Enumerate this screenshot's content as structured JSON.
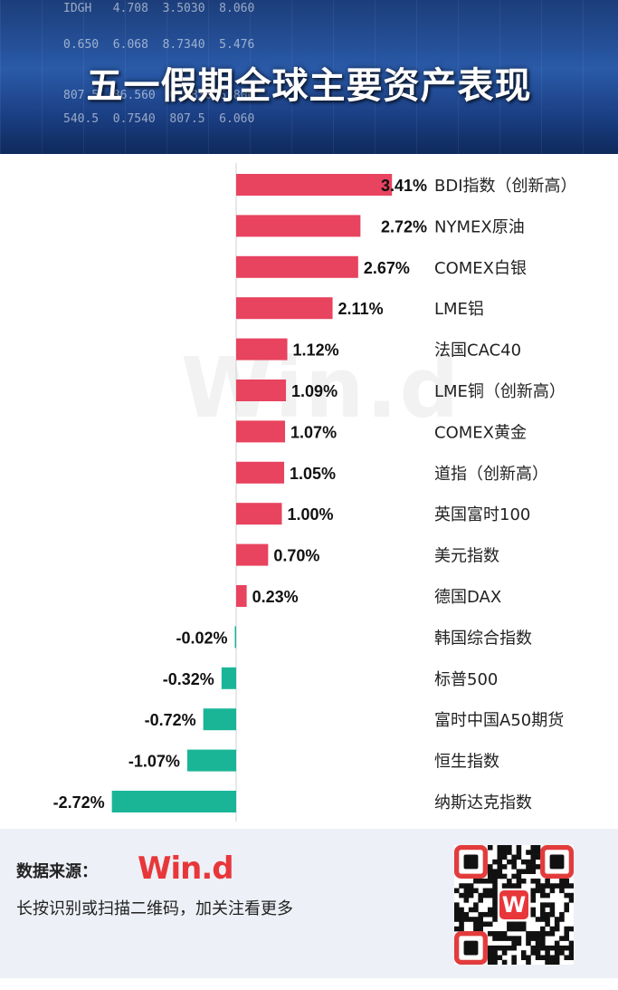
{
  "banner": {
    "title": "五一假期全球主要资产表现",
    "ticker_lines": [
      "IDGH   4.708  3.5030  8.060   ",
      "0.650  6.068  8.7340  5.476   ",
      "807.5  86.560  0.6830 6.806   ",
      "540.5  0.7540  807.5  6.060   "
    ]
  },
  "chart_data": {
    "type": "bar",
    "orientation": "horizontal",
    "categories": [
      "BDI指数（创新高）",
      "NYMEX原油",
      "COMEX白银",
      "LME铝",
      "法国CAC40",
      "LME铜（创新高）",
      "COMEX黄金",
      "道指（创新高）",
      "英国富时100",
      "美元指数",
      "德国DAX",
      "韩国综合指数",
      "标普500",
      "富时中国A50期货",
      "恒生指数",
      "纳斯达克指数"
    ],
    "values": [
      3.41,
      2.72,
      2.67,
      2.11,
      1.12,
      1.09,
      1.07,
      1.05,
      1.0,
      0.7,
      0.23,
      -0.02,
      -0.32,
      -0.72,
      -1.07,
      -2.72
    ],
    "value_labels": [
      "3.41%",
      "2.72%",
      "2.67%",
      "2.11%",
      "1.12%",
      "1.09%",
      "1.07%",
      "1.05%",
      "1.00%",
      "0.70%",
      "0.23%",
      "-0.02%",
      "-0.32%",
      "-0.72%",
      "-1.07%",
      "-2.72%"
    ],
    "title": "",
    "xlabel": "",
    "ylabel": "",
    "grid": false,
    "colors": {
      "positive": "#e8435f",
      "negative": "#1ab597",
      "axis": "#d0d0d0"
    }
  },
  "watermark": "Win.d",
  "footer": {
    "source_label": "数据来源：",
    "logo": "Win.d",
    "qr_hint": "长按识别或扫描二维码，加关注看更多",
    "qr_badge": "W"
  }
}
